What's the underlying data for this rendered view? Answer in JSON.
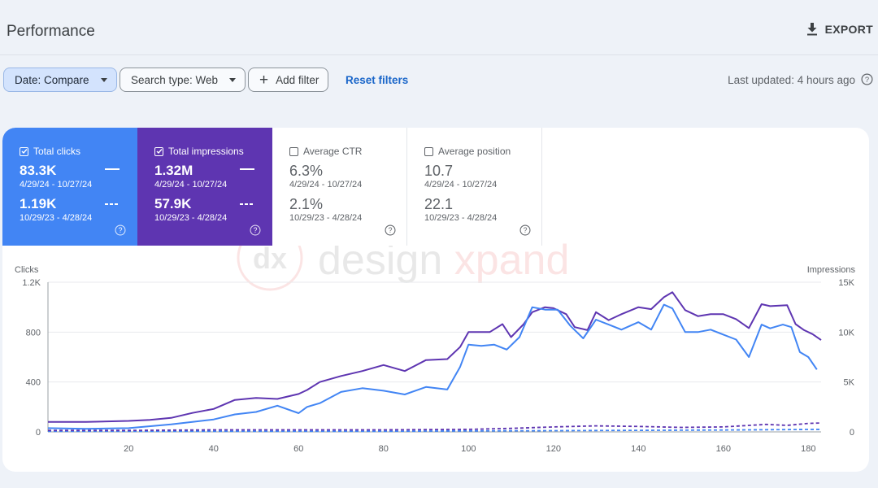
{
  "header": {
    "title": "Performance",
    "export_label": "EXPORT"
  },
  "filters": {
    "date_label": "Date: Compare",
    "search_type_label": "Search type: Web",
    "add_filter_label": "Add filter",
    "reset_label": "Reset filters",
    "last_updated": "Last updated: 4 hours ago"
  },
  "watermark": "dx design xpand",
  "metrics": [
    {
      "label": "Total clicks",
      "checked": true,
      "value_current": "83.3K",
      "range_current": "4/29/24 - 10/27/24",
      "value_previous": "1.19K",
      "range_previous": "10/29/23 - 4/28/24",
      "color": "#4285f4"
    },
    {
      "label": "Total impressions",
      "checked": true,
      "value_current": "1.32M",
      "range_current": "4/29/24 - 10/27/24",
      "value_previous": "57.9K",
      "range_previous": "10/29/23 - 4/28/24",
      "color": "#5e35b1"
    },
    {
      "label": "Average CTR",
      "checked": false,
      "value_current": "6.3%",
      "range_current": "4/29/24 - 10/27/24",
      "value_previous": "2.1%",
      "range_previous": "10/29/23 - 4/28/24"
    },
    {
      "label": "Average position",
      "checked": false,
      "value_current": "10.7",
      "range_current": "4/29/24 - 10/27/24",
      "value_previous": "22.1",
      "range_previous": "10/29/23 - 4/28/24"
    }
  ],
  "chart_data": {
    "type": "line",
    "ylabel_left": "Clicks",
    "ylabel_right": "Impressions",
    "x_ticks": [
      20,
      40,
      60,
      80,
      100,
      120,
      140,
      160,
      180
    ],
    "y_left_ticks": [
      "0",
      "400",
      "800",
      "1.2K"
    ],
    "y_right_ticks": [
      "0",
      "5K",
      "10K",
      "15K"
    ],
    "xlim": [
      1,
      183
    ],
    "y_left_lim": [
      0,
      1200
    ],
    "y_right_lim": [
      0,
      15000
    ],
    "grid": true,
    "series": [
      {
        "metric": "impressions",
        "period": "current",
        "axis": "right",
        "color": "#5e35b1",
        "style": "solid",
        "points": [
          [
            1,
            1000
          ],
          [
            5,
            1000
          ],
          [
            10,
            1000
          ],
          [
            15,
            1050
          ],
          [
            20,
            1100
          ],
          [
            25,
            1200
          ],
          [
            30,
            1400
          ],
          [
            35,
            1900
          ],
          [
            40,
            2300
          ],
          [
            45,
            3200
          ],
          [
            50,
            3400
          ],
          [
            55,
            3300
          ],
          [
            60,
            3800
          ],
          [
            62,
            4200
          ],
          [
            65,
            5000
          ],
          [
            70,
            5600
          ],
          [
            75,
            6100
          ],
          [
            80,
            6700
          ],
          [
            85,
            6100
          ],
          [
            90,
            7200
          ],
          [
            95,
            7300
          ],
          [
            98,
            8500
          ],
          [
            100,
            10000
          ],
          [
            105,
            10000
          ],
          [
            108,
            10800
          ],
          [
            110,
            9500
          ],
          [
            113,
            10800
          ],
          [
            115,
            12000
          ],
          [
            118,
            12500
          ],
          [
            120,
            12400
          ],
          [
            123,
            11800
          ],
          [
            125,
            10500
          ],
          [
            128,
            10200
          ],
          [
            130,
            12000
          ],
          [
            133,
            11200
          ],
          [
            136,
            11800
          ],
          [
            140,
            12500
          ],
          [
            143,
            12300
          ],
          [
            146,
            13500
          ],
          [
            148,
            14000
          ],
          [
            151,
            12200
          ],
          [
            154,
            11600
          ],
          [
            157,
            11800
          ],
          [
            160,
            11800
          ],
          [
            163,
            11300
          ],
          [
            166,
            10400
          ],
          [
            169,
            12800
          ],
          [
            171,
            12600
          ],
          [
            175,
            12700
          ],
          [
            177,
            10800
          ],
          [
            179,
            10200
          ],
          [
            181,
            9800
          ],
          [
            183,
            9200
          ]
        ]
      },
      {
        "metric": "clicks",
        "period": "current",
        "axis": "left",
        "color": "#4285f4",
        "style": "solid",
        "points": [
          [
            1,
            30
          ],
          [
            10,
            25
          ],
          [
            20,
            30
          ],
          [
            30,
            60
          ],
          [
            35,
            80
          ],
          [
            40,
            100
          ],
          [
            45,
            140
          ],
          [
            50,
            160
          ],
          [
            55,
            210
          ],
          [
            60,
            150
          ],
          [
            62,
            200
          ],
          [
            65,
            230
          ],
          [
            70,
            320
          ],
          [
            75,
            350
          ],
          [
            80,
            330
          ],
          [
            85,
            300
          ],
          [
            90,
            360
          ],
          [
            95,
            340
          ],
          [
            98,
            520
          ],
          [
            100,
            700
          ],
          [
            103,
            690
          ],
          [
            106,
            700
          ],
          [
            109,
            660
          ],
          [
            112,
            760
          ],
          [
            115,
            1000
          ],
          [
            118,
            980
          ],
          [
            121,
            980
          ],
          [
            124,
            850
          ],
          [
            127,
            750
          ],
          [
            130,
            900
          ],
          [
            133,
            860
          ],
          [
            136,
            820
          ],
          [
            140,
            880
          ],
          [
            143,
            820
          ],
          [
            146,
            1020
          ],
          [
            148,
            990
          ],
          [
            151,
            800
          ],
          [
            154,
            800
          ],
          [
            157,
            820
          ],
          [
            160,
            780
          ],
          [
            163,
            740
          ],
          [
            166,
            600
          ],
          [
            169,
            860
          ],
          [
            171,
            830
          ],
          [
            174,
            860
          ],
          [
            176,
            840
          ],
          [
            178,
            640
          ],
          [
            180,
            600
          ],
          [
            182,
            500
          ]
        ]
      },
      {
        "metric": "impressions",
        "period": "previous",
        "axis": "right",
        "color": "#5e35b1",
        "style": "dashed",
        "points": [
          [
            1,
            150
          ],
          [
            20,
            150
          ],
          [
            40,
            200
          ],
          [
            60,
            200
          ],
          [
            80,
            200
          ],
          [
            100,
            250
          ],
          [
            110,
            350
          ],
          [
            120,
            500
          ],
          [
            130,
            600
          ],
          [
            140,
            550
          ],
          [
            150,
            450
          ],
          [
            160,
            500
          ],
          [
            170,
            750
          ],
          [
            175,
            650
          ],
          [
            180,
            850
          ],
          [
            183,
            900
          ]
        ]
      },
      {
        "metric": "clicks",
        "period": "previous",
        "axis": "left",
        "color": "#4285f4",
        "style": "dashed",
        "points": [
          [
            1,
            5
          ],
          [
            40,
            5
          ],
          [
            80,
            5
          ],
          [
            120,
            10
          ],
          [
            160,
            15
          ],
          [
            183,
            20
          ]
        ]
      }
    ]
  }
}
